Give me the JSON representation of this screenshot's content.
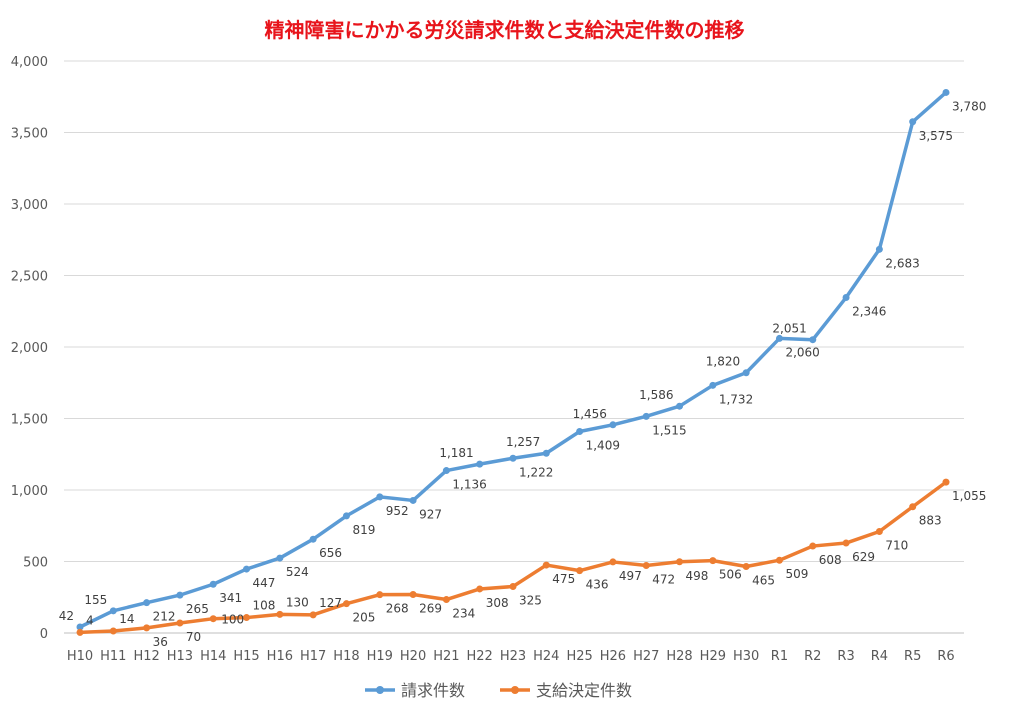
{
  "chart_data": {
    "type": "line",
    "title": "精神障害にかかる労災請求件数と支給決定件数の推移",
    "xlabel": "",
    "ylabel": "",
    "ylim": [
      0,
      4000
    ],
    "yticks": [
      0,
      500,
      1000,
      1500,
      2000,
      2500,
      3000,
      3500,
      4000
    ],
    "ytick_labels": [
      "0",
      "500",
      "1,000",
      "1,500",
      "2,000",
      "2,500",
      "3,000",
      "3,500",
      "4,000"
    ],
    "grid": true,
    "legend_position": "bottom",
    "categories": [
      "H10",
      "H11",
      "H12",
      "H13",
      "H14",
      "H15",
      "H16",
      "H17",
      "H18",
      "H19",
      "H20",
      "H21",
      "H22",
      "H23",
      "H24",
      "H25",
      "H26",
      "H27",
      "H28",
      "H29",
      "H30",
      "R1",
      "R2",
      "R3",
      "R4",
      "R5",
      "R6"
    ],
    "series": [
      {
        "name": "請求件数",
        "color": "#5b9bd5",
        "values": [
          42,
          155,
          212,
          265,
          341,
          447,
          524,
          656,
          819,
          952,
          927,
          1136,
          1181,
          1222,
          1257,
          1409,
          1456,
          1515,
          1586,
          1732,
          1820,
          2060,
          2051,
          2346,
          2683,
          3575,
          3780
        ]
      },
      {
        "name": "支給決定件数",
        "color": "#ed7d31",
        "values": [
          4,
          14,
          36,
          70,
          100,
          108,
          130,
          127,
          205,
          268,
          269,
          234,
          308,
          325,
          475,
          436,
          497,
          472,
          498,
          506,
          465,
          509,
          608,
          629,
          710,
          883,
          1055
        ]
      }
    ]
  }
}
